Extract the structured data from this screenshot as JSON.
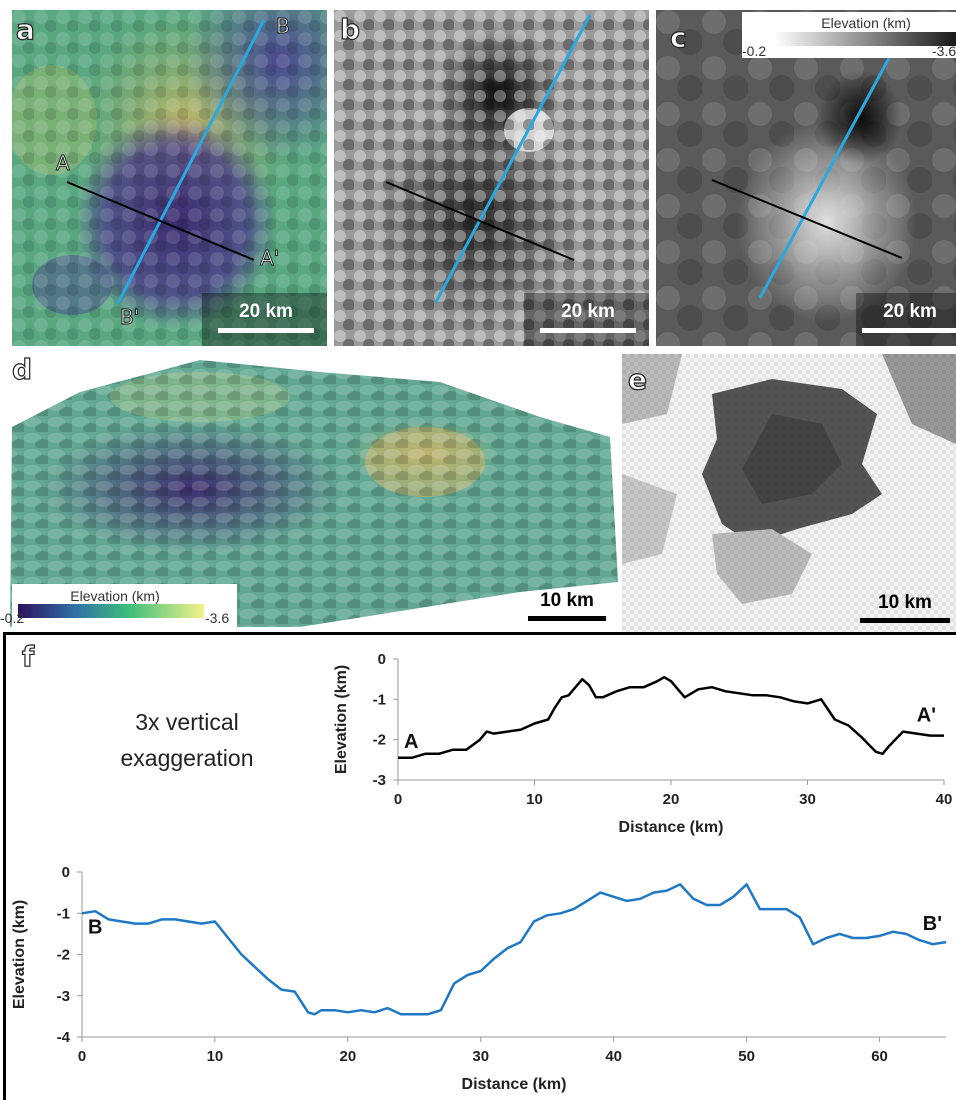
{
  "panels": {
    "a": {
      "label": "a",
      "point_labels": {
        "A": "A",
        "A_prime": "A'",
        "B": "B",
        "B_prime": "B'"
      },
      "scale": "20 km"
    },
    "b": {
      "label": "b",
      "scale": "20 km"
    },
    "c": {
      "label": "c",
      "scale": "20 km",
      "colorbar": {
        "title": "Elevation (km)",
        "min": "-0.2",
        "max": "-3.6"
      }
    },
    "d": {
      "label": "d",
      "scale": "10 km",
      "colorbar": {
        "title": "Elevation (km)",
        "min": "-0.2",
        "max": "-3.6"
      }
    },
    "e": {
      "label": "e",
      "scale": "10 km"
    },
    "f": {
      "label": "f",
      "note": "3x vertical\nexaggeration"
    }
  },
  "colors": {
    "profile_AA": "#000000",
    "profile_BB": "#1f78c4",
    "line_cyan": "#2aa8e0"
  },
  "chart_data": [
    {
      "type": "line",
      "title": "",
      "xlabel": "Distance (km)",
      "ylabel": "Elevation (km)",
      "xlim": [
        0,
        40
      ],
      "ylim": [
        -3,
        0
      ],
      "xticks": [
        0,
        10,
        20,
        30,
        40
      ],
      "yticks": [
        0,
        -1,
        -2,
        -3
      ],
      "start_label": "A",
      "end_label": "A'",
      "series": [
        {
          "x": [
            0,
            1,
            2,
            3,
            4,
            5,
            6,
            6.5,
            7,
            8,
            9,
            10,
            11,
            11.5,
            12,
            12.5,
            13,
            13.5,
            14,
            14.5,
            15,
            16,
            17,
            18,
            19,
            19.5,
            20,
            21,
            22,
            23,
            24,
            25,
            26,
            27,
            28,
            29,
            30,
            31,
            32,
            33,
            34,
            35,
            35.5,
            36,
            37,
            38,
            39,
            40
          ],
          "y": [
            -2.45,
            -2.45,
            -2.35,
            -2.35,
            -2.25,
            -2.25,
            -2.0,
            -1.8,
            -1.85,
            -1.8,
            -1.75,
            -1.6,
            -1.5,
            -1.2,
            -0.95,
            -0.9,
            -0.7,
            -0.5,
            -0.65,
            -0.95,
            -0.95,
            -0.8,
            -0.7,
            -0.7,
            -0.55,
            -0.45,
            -0.55,
            -0.95,
            -0.75,
            -0.7,
            -0.8,
            -0.85,
            -0.9,
            -0.9,
            -0.95,
            -1.05,
            -1.1,
            -1.0,
            -1.5,
            -1.65,
            -1.95,
            -2.3,
            -2.35,
            -2.15,
            -1.8,
            -1.85,
            -1.9,
            -1.9
          ]
        }
      ]
    },
    {
      "type": "line",
      "title": "",
      "xlabel": "Distance (km)",
      "ylabel": "Elevation (km)",
      "xlim": [
        0,
        65
      ],
      "ylim": [
        -4,
        0
      ],
      "xticks": [
        0,
        10,
        20,
        30,
        40,
        50,
        60
      ],
      "yticks": [
        0,
        -1,
        -2,
        -3,
        -4
      ],
      "start_label": "B",
      "end_label": "B'",
      "series": [
        {
          "x": [
            0,
            1,
            2,
            3,
            4,
            5,
            6,
            7,
            8,
            9,
            10,
            11,
            12,
            13,
            14,
            15,
            16,
            17,
            17.5,
            18,
            19,
            20,
            21,
            22,
            23,
            24,
            25,
            26,
            27,
            28,
            29,
            30,
            31,
            32,
            33,
            34,
            35,
            36,
            37,
            38,
            39,
            40,
            41,
            42,
            43,
            44,
            45,
            46,
            47,
            48,
            49,
            50,
            51,
            52,
            53,
            54,
            55,
            56,
            57,
            58,
            59,
            60,
            61,
            62,
            63,
            64,
            65
          ],
          "y": [
            -1.0,
            -0.95,
            -1.15,
            -1.2,
            -1.25,
            -1.25,
            -1.15,
            -1.15,
            -1.2,
            -1.25,
            -1.2,
            -1.6,
            -2.0,
            -2.3,
            -2.6,
            -2.85,
            -2.9,
            -3.4,
            -3.45,
            -3.35,
            -3.35,
            -3.4,
            -3.35,
            -3.4,
            -3.3,
            -3.45,
            -3.45,
            -3.45,
            -3.35,
            -2.7,
            -2.5,
            -2.4,
            -2.1,
            -1.85,
            -1.7,
            -1.2,
            -1.05,
            -1.0,
            -0.9,
            -0.7,
            -0.5,
            -0.6,
            -0.7,
            -0.65,
            -0.5,
            -0.45,
            -0.3,
            -0.65,
            -0.8,
            -0.8,
            -0.6,
            -0.3,
            -0.9,
            -0.9,
            -0.9,
            -1.1,
            -1.75,
            -1.6,
            -1.5,
            -1.6,
            -1.6,
            -1.55,
            -1.45,
            -1.5,
            -1.65,
            -1.75,
            -1.7
          ]
        }
      ]
    }
  ]
}
